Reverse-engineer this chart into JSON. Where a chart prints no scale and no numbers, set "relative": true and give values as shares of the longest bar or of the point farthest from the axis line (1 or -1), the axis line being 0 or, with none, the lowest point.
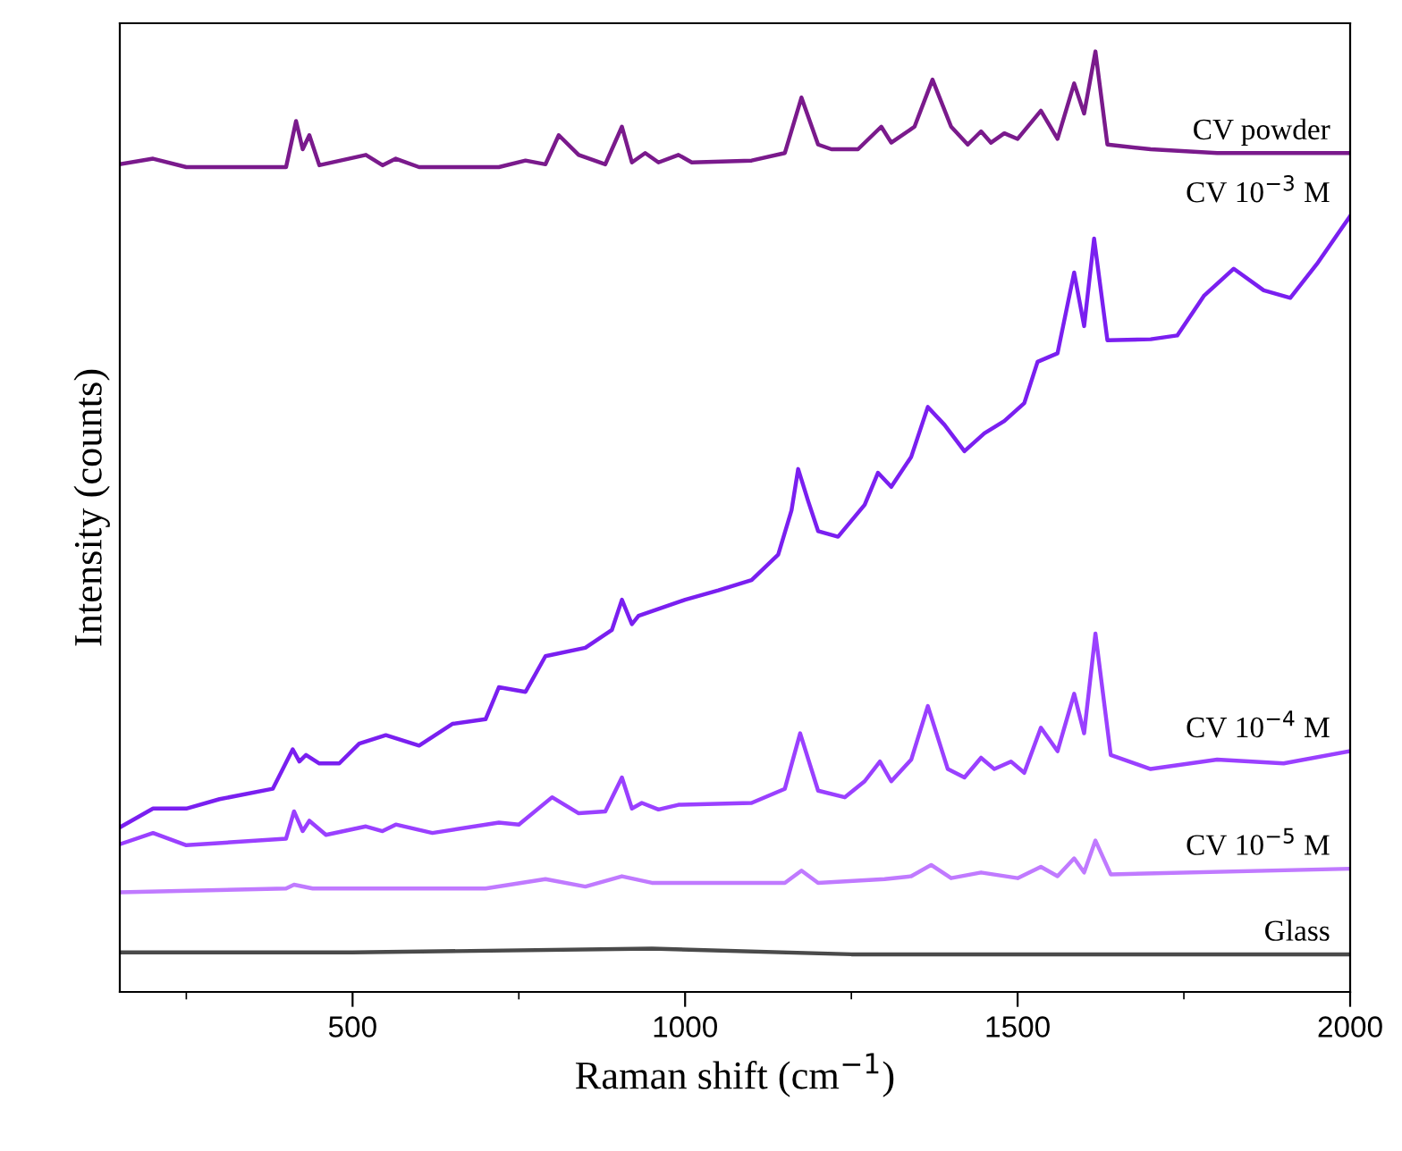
{
  "chart_data": {
    "type": "line",
    "relative": true,
    "xlabel": "Raman shift (cm$^{−1}$)",
    "ylabel": "Intensity (counts)",
    "xlim": [
      150,
      2000
    ],
    "xticks": [
      {
        "value": 250,
        "label": null
      },
      500,
      {
        "value": 750,
        "label": null
      },
      1000,
      {
        "value": 1250,
        "label": null
      },
      1500,
      {
        "value": 1750,
        "label": null
      },
      2000
    ],
    "tick_labels": "x",
    "grid": false,
    "legend": false,
    "line_style": "solid",
    "series": [
      {
        "name": "CV powder",
        "color": "#7a1a8c",
        "x": [
          150,
          200,
          250,
          400,
          415,
          425,
          435,
          450,
          520,
          545,
          565,
          600,
          720,
          760,
          790,
          810,
          840,
          880,
          905,
          920,
          940,
          960,
          990,
          1010,
          1100,
          1150,
          1175,
          1200,
          1220,
          1260,
          1295,
          1310,
          1345,
          1372,
          1400,
          1425,
          1445,
          1460,
          1480,
          1500,
          1535,
          1560,
          1585,
          1600,
          1617,
          1635,
          1700,
          1800,
          2000
        ],
        "values": [
          0.88,
          0.886,
          0.877,
          0.877,
          0.926,
          0.896,
          0.911,
          0.879,
          0.89,
          0.879,
          0.886,
          0.877,
          0.877,
          0.884,
          0.88,
          0.911,
          0.89,
          0.88,
          0.92,
          0.882,
          0.892,
          0.882,
          0.89,
          0.882,
          0.884,
          0.892,
          0.951,
          0.901,
          0.896,
          0.896,
          0.92,
          0.903,
          0.92,
          0.97,
          0.92,
          0.901,
          0.915,
          0.903,
          0.913,
          0.907,
          0.937,
          0.907,
          0.966,
          0.934,
          1.0,
          0.901,
          0.896,
          0.892,
          0.892
        ]
      },
      {
        "name": "CV 10$^{−3}$ M",
        "color": "#7a1ff0",
        "x": [
          150,
          200,
          250,
          300,
          380,
          410,
          420,
          430,
          450,
          480,
          510,
          550,
          600,
          650,
          700,
          720,
          760,
          790,
          850,
          890,
          905,
          920,
          930,
          1000,
          1050,
          1100,
          1140,
          1160,
          1170,
          1185,
          1200,
          1230,
          1270,
          1290,
          1310,
          1340,
          1365,
          1390,
          1420,
          1450,
          1480,
          1510,
          1530,
          1560,
          1585,
          1600,
          1615,
          1635,
          1700,
          1740,
          1780,
          1825,
          1870,
          1910,
          1950,
          2000
        ],
        "values": [
          0.175,
          0.195,
          0.195,
          0.205,
          0.216,
          0.258,
          0.245,
          0.252,
          0.243,
          0.243,
          0.264,
          0.273,
          0.262,
          0.285,
          0.29,
          0.324,
          0.319,
          0.357,
          0.366,
          0.385,
          0.417,
          0.391,
          0.4,
          0.417,
          0.427,
          0.438,
          0.465,
          0.512,
          0.556,
          0.522,
          0.49,
          0.484,
          0.518,
          0.552,
          0.537,
          0.569,
          0.622,
          0.603,
          0.575,
          0.594,
          0.607,
          0.626,
          0.67,
          0.679,
          0.765,
          0.708,
          0.801,
          0.693,
          0.694,
          0.698,
          0.74,
          0.769,
          0.746,
          0.738,
          0.774,
          0.825
        ]
      },
      {
        "name": "CV 10$^{−4}$ M",
        "color": "#9a40ff",
        "x": [
          150,
          200,
          250,
          400,
          412,
          425,
          435,
          460,
          520,
          545,
          565,
          620,
          720,
          750,
          800,
          840,
          880,
          905,
          920,
          935,
          960,
          990,
          1100,
          1150,
          1173,
          1200,
          1240,
          1270,
          1293,
          1310,
          1340,
          1365,
          1395,
          1420,
          1445,
          1465,
          1490,
          1510,
          1535,
          1560,
          1585,
          1600,
          1617,
          1640,
          1700,
          1800,
          1900,
          2000
        ],
        "values": [
          0.157,
          0.169,
          0.156,
          0.163,
          0.192,
          0.171,
          0.182,
          0.167,
          0.176,
          0.171,
          0.178,
          0.169,
          0.18,
          0.178,
          0.207,
          0.19,
          0.192,
          0.228,
          0.195,
          0.201,
          0.194,
          0.199,
          0.201,
          0.216,
          0.275,
          0.214,
          0.207,
          0.224,
          0.245,
          0.224,
          0.247,
          0.304,
          0.237,
          0.228,
          0.249,
          0.237,
          0.245,
          0.233,
          0.281,
          0.256,
          0.317,
          0.275,
          0.381,
          0.252,
          0.237,
          0.247,
          0.243,
          0.256
        ]
      },
      {
        "name": "CV 10$^{−5}$ M",
        "color": "#c07aff",
        "x": [
          150,
          400,
          412,
          440,
          700,
          790,
          850,
          905,
          950,
          1150,
          1175,
          1200,
          1300,
          1340,
          1370,
          1400,
          1445,
          1500,
          1535,
          1560,
          1585,
          1600,
          1617,
          1640,
          2000
        ],
        "values": [
          0.106,
          0.11,
          0.114,
          0.11,
          0.11,
          0.12,
          0.112,
          0.123,
          0.116,
          0.116,
          0.129,
          0.116,
          0.12,
          0.123,
          0.135,
          0.121,
          0.127,
          0.121,
          0.133,
          0.123,
          0.142,
          0.127,
          0.161,
          0.125,
          0.131
        ]
      },
      {
        "name": "Glass",
        "color": "#4a4a4a",
        "x": [
          150,
          500,
          950,
          1250,
          2000
        ],
        "values": [
          0.042,
          0.042,
          0.046,
          0.04,
          0.04
        ]
      }
    ]
  }
}
